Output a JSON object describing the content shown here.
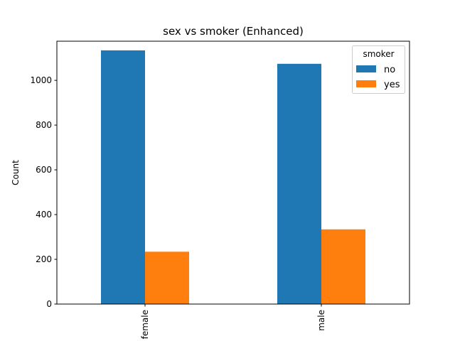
{
  "chart_data": {
    "type": "bar",
    "title": "sex vs smoker (Enhanced)",
    "xlabel": "",
    "ylabel": "Count",
    "categories": [
      "female",
      "male"
    ],
    "ylim": [
      0,
      1175
    ],
    "yticks": [
      0,
      200,
      400,
      600,
      800,
      1000
    ],
    "grid": false,
    "legend": {
      "title": "smoker",
      "placement": "top-right"
    },
    "series": [
      {
        "name": "no",
        "values": [
          1134,
          1074
        ],
        "color": "#1f77b4"
      },
      {
        "name": "yes",
        "values": [
          234,
          334
        ],
        "color": "#ff7f0e"
      }
    ]
  }
}
